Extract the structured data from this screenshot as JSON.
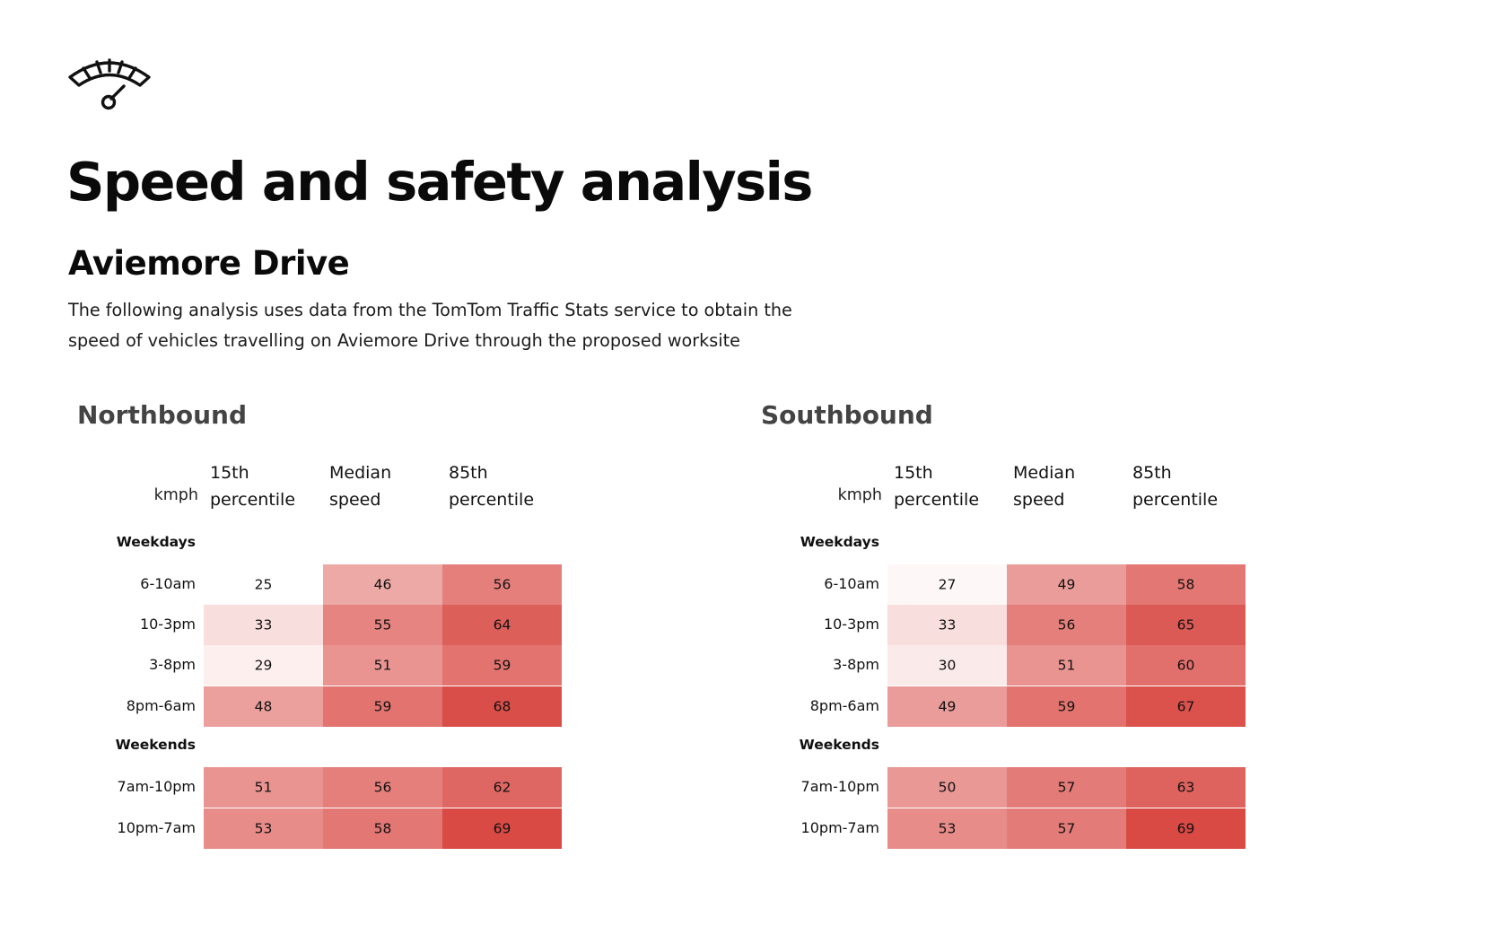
{
  "header": {
    "icon": "speedometer-icon",
    "title": "Speed and safety analysis",
    "subtitle": "Aviemore Drive",
    "description_line1": "The following analysis uses data from the TomTom Traffic Stats service to obtain the",
    "description_line2": "speed of vehicles travelling on Aviemore Drive through the proposed worksite"
  },
  "colors": {
    "low": "#ffffff",
    "high": "#d94a45"
  },
  "chart_data": [
    {
      "type": "heatmap",
      "title": "Northbound",
      "unit_label": "kmph",
      "columns": [
        {
          "line1": "15th",
          "line2": "percentile"
        },
        {
          "line1": "Median",
          "line2": "speed"
        },
        {
          "line1": "85th",
          "line2": "percentile"
        }
      ],
      "groups": [
        {
          "name": "Weekdays",
          "rows": [
            {
              "label": "6-10am",
              "values": [
                25,
                46,
                56
              ]
            },
            {
              "label": "10-3pm",
              "values": [
                33,
                55,
                64
              ]
            },
            {
              "label": "3-8pm",
              "values": [
                29,
                51,
                59
              ]
            },
            {
              "label": "8pm-6am",
              "values": [
                48,
                59,
                68
              ]
            }
          ]
        },
        {
          "name": "Weekends",
          "rows": [
            {
              "label": "7am-10pm",
              "values": [
                51,
                56,
                62
              ]
            },
            {
              "label": "10pm-7am",
              "values": [
                53,
                58,
                69
              ]
            }
          ]
        }
      ]
    },
    {
      "type": "heatmap",
      "title": "Southbound",
      "unit_label": "kmph",
      "columns": [
        {
          "line1": "15th",
          "line2": "percentile"
        },
        {
          "line1": "Median",
          "line2": "speed"
        },
        {
          "line1": "85th",
          "line2": "percentile"
        }
      ],
      "groups": [
        {
          "name": "Weekdays",
          "rows": [
            {
              "label": "6-10am",
              "values": [
                27,
                49,
                58
              ]
            },
            {
              "label": "10-3pm",
              "values": [
                33,
                56,
                65
              ]
            },
            {
              "label": "3-8pm",
              "values": [
                30,
                51,
                60
              ]
            },
            {
              "label": "8pm-6am",
              "values": [
                49,
                59,
                67
              ]
            }
          ]
        },
        {
          "name": "Weekends",
          "rows": [
            {
              "label": "7am-10pm",
              "values": [
                50,
                57,
                63
              ]
            },
            {
              "label": "10pm-7am",
              "values": [
                53,
                57,
                69
              ]
            }
          ]
        }
      ]
    }
  ]
}
